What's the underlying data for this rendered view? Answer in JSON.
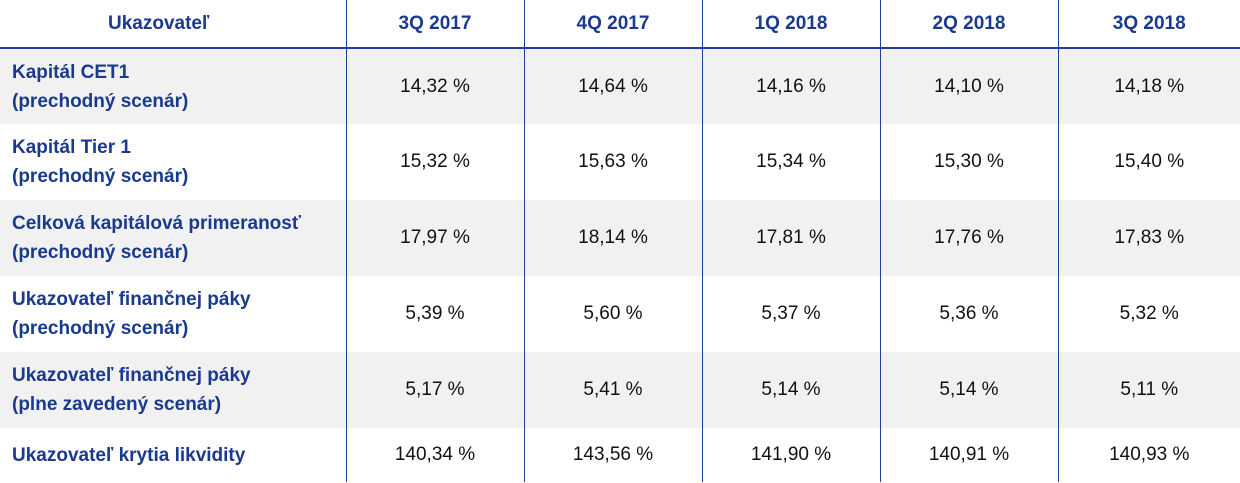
{
  "table": {
    "headers": [
      "Ukazovateľ",
      "3Q 2017",
      "4Q 2017",
      "1Q 2018",
      "2Q 2018",
      "3Q 2018"
    ],
    "rows": [
      {
        "label": [
          "Kapitál CET1",
          "(prechodný scenár)"
        ],
        "values": [
          "14,32 %",
          "14,64 %",
          "14,16 %",
          "14,10 %",
          "14,18 %"
        ]
      },
      {
        "label": [
          "Kapitál Tier 1",
          "(prechodný scenár)"
        ],
        "values": [
          "15,32 %",
          "15,63 %",
          "15,34 %",
          "15,30 %",
          "15,40 %"
        ]
      },
      {
        "label": [
          "Celková kapitálová primeranosť",
          "(prechodný scenár)"
        ],
        "values": [
          "17,97 %",
          "18,14 %",
          "17,81 %",
          "17,76 %",
          "17,83 %"
        ]
      },
      {
        "label": [
          "Ukazovateľ finančnej páky",
          "(prechodný scenár)"
        ],
        "values": [
          "5,39 %",
          "5,60 %",
          "5,37 %",
          "5,36 %",
          "5,32 %"
        ]
      },
      {
        "label": [
          "Ukazovateľ finančnej páky",
          "(plne zavedený scenár)"
        ],
        "values": [
          "5,17 %",
          "5,41 %",
          "5,14 %",
          "5,14 %",
          "5,11 %"
        ]
      },
      {
        "label": [
          "Ukazovateľ krytia likvidity"
        ],
        "values": [
          "140,34 %",
          "143,56 %",
          "141,90 %",
          "140,91 %",
          "140,93 %"
        ]
      }
    ]
  },
  "colors": {
    "header_text": "#1a3a8f",
    "rule": "#1f3f99",
    "shade": "#f1f1f1"
  }
}
